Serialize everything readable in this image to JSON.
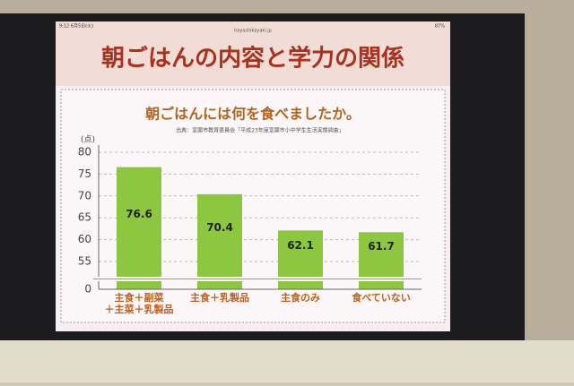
{
  "status": {
    "time": "9:12  6月5日(火)",
    "url": "hayashikayaki.jp",
    "battery": "87%"
  },
  "header": {
    "title": "朝ごはんの内容と学力の関係"
  },
  "chart_data": {
    "type": "bar",
    "title": "朝ごはんには何を食べましたか。",
    "subtitle": "出典：室蘭市教育委員会「平成23年度室蘭市小中学生生活実態調査」",
    "y_label": "(点)",
    "categories": [
      "主食＋副菜\n＋主菜＋乳製品",
      "主食＋乳製品",
      "主食のみ",
      "食べていない"
    ],
    "values": [
      76.6,
      70.4,
      62.1,
      61.7
    ],
    "color": "#8dc63f",
    "ylim": [
      0,
      80
    ],
    "yticks": [
      0,
      55,
      60,
      65,
      70,
      75,
      80
    ],
    "axis_break": true,
    "grid": true
  }
}
